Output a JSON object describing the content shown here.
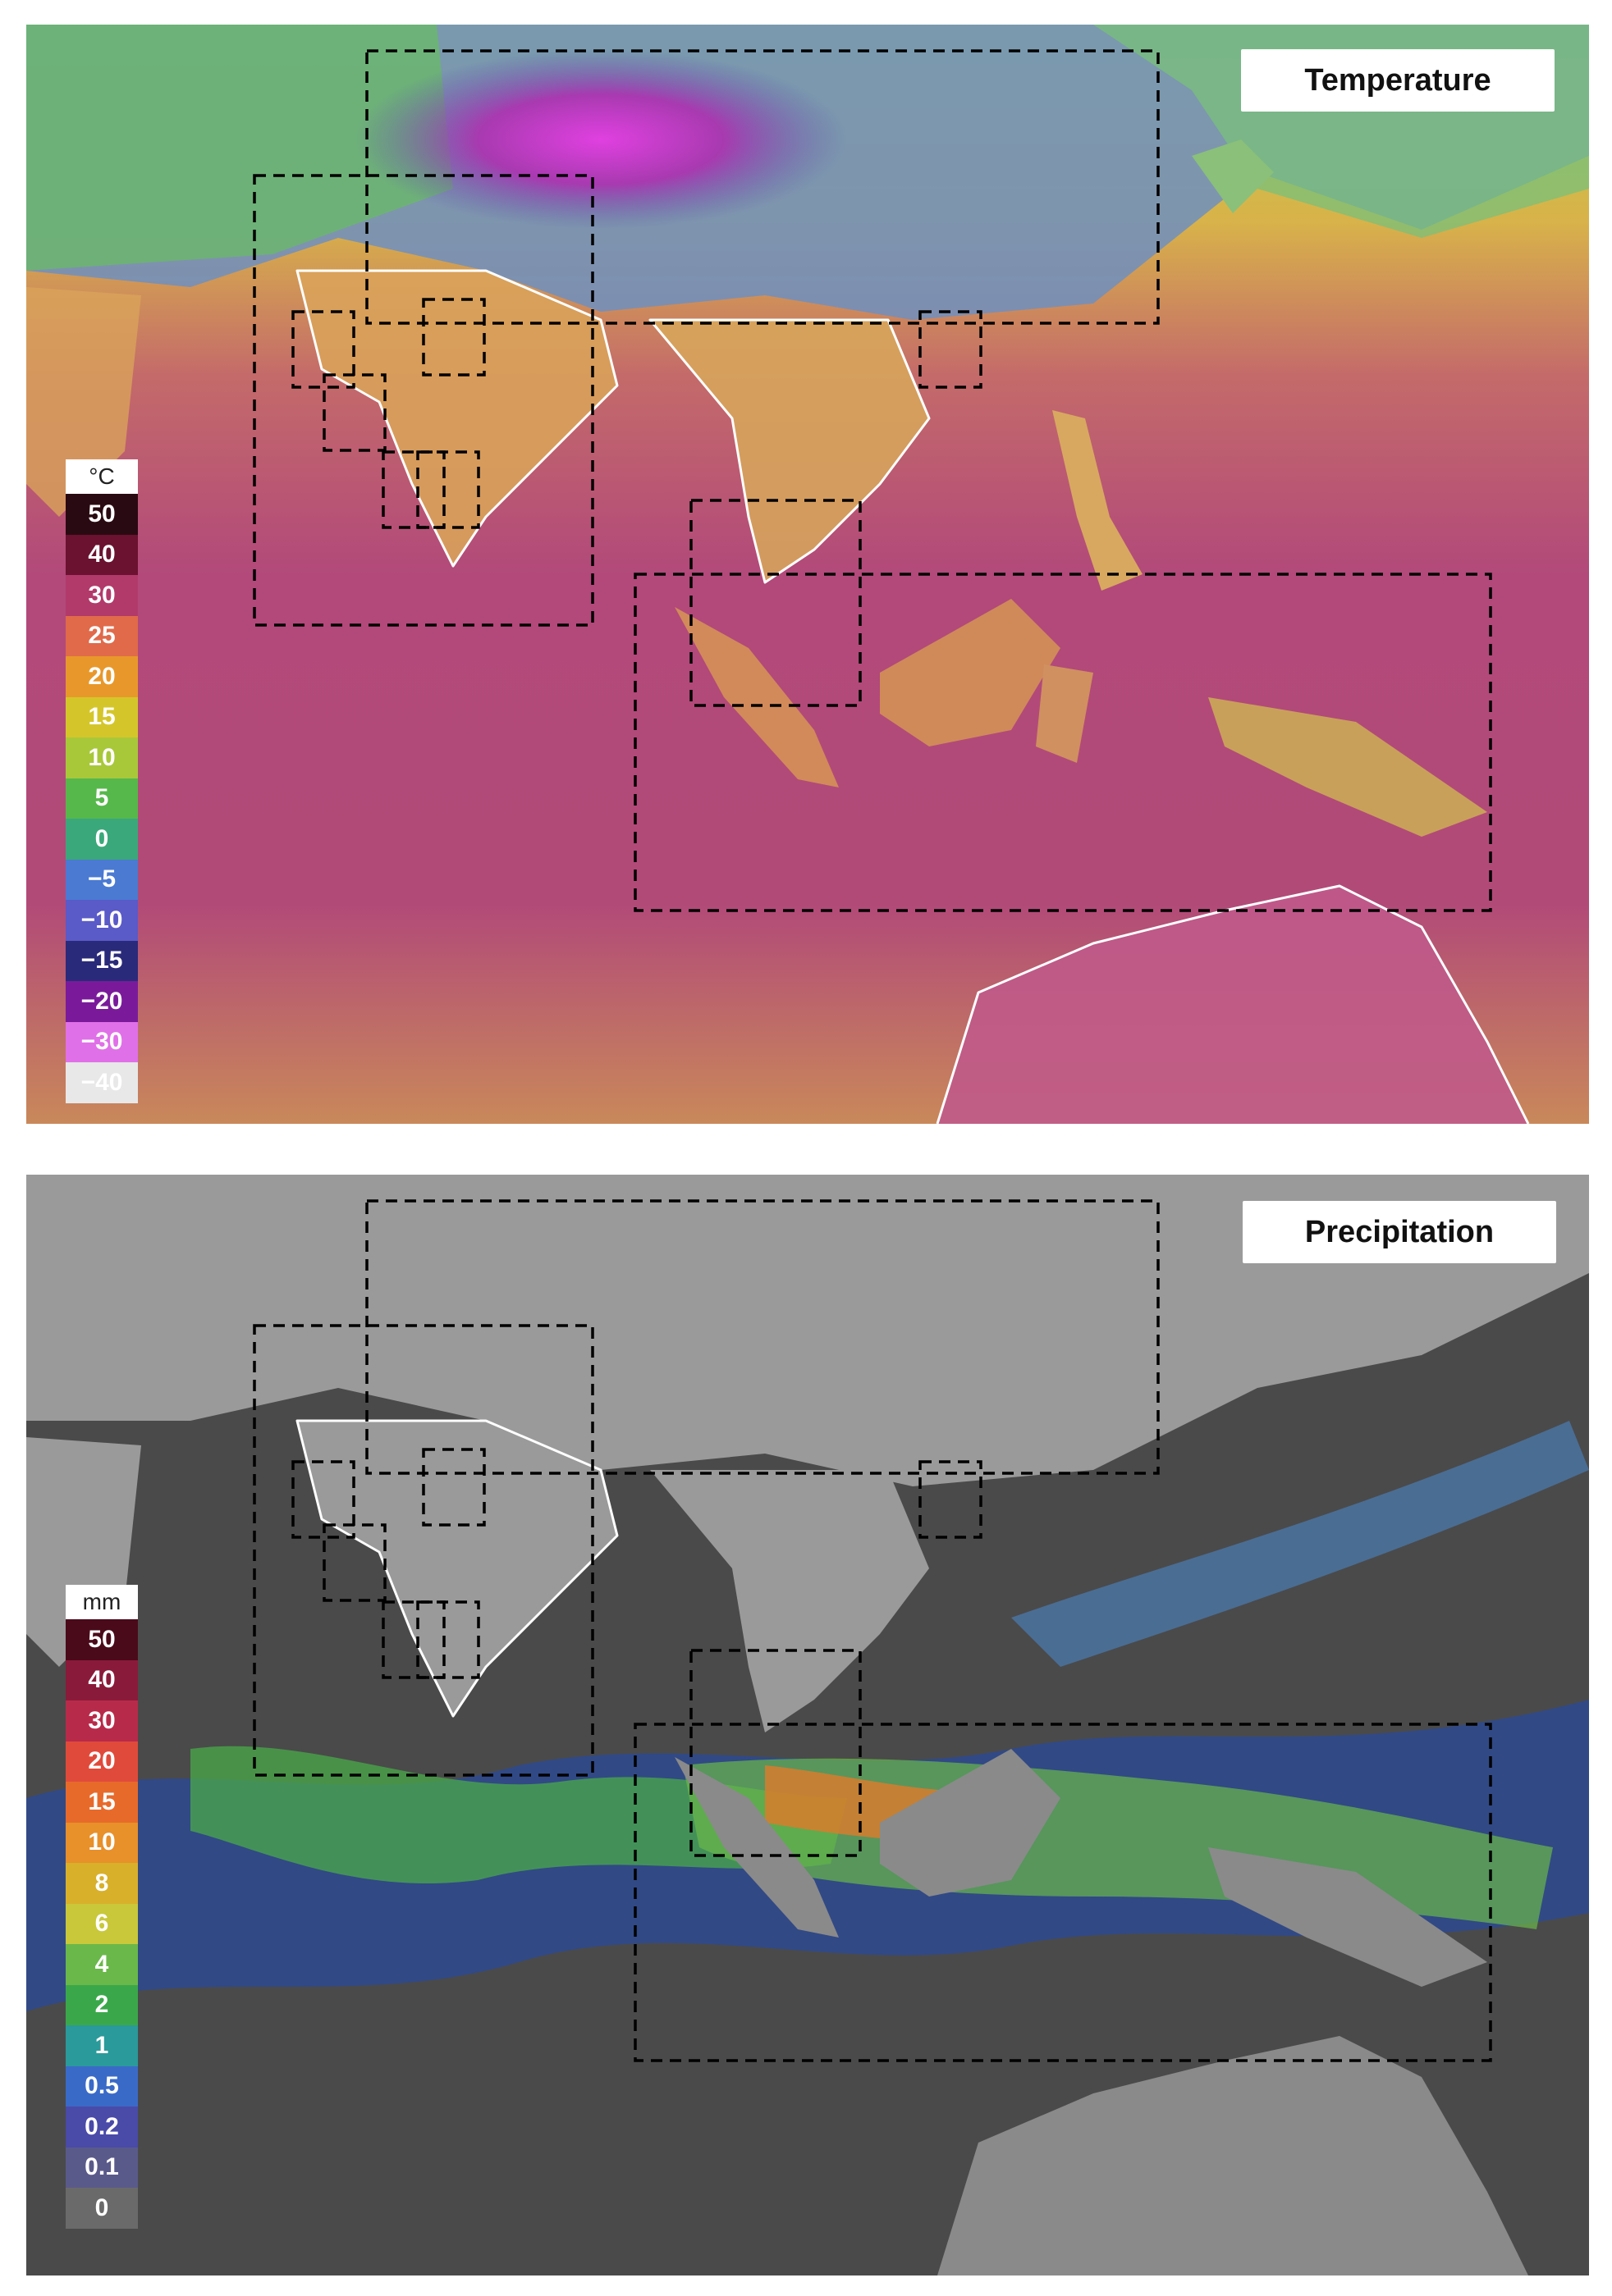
{
  "temperature_panel": {
    "title": "Temperature",
    "legend": {
      "unit": "°C",
      "entries": [
        {
          "label": "50",
          "color": "#2a0a12"
        },
        {
          "label": "40",
          "color": "#6a1230"
        },
        {
          "label": "30",
          "color": "#b23a6a"
        },
        {
          "label": "25",
          "color": "#e06a4a"
        },
        {
          "label": "20",
          "color": "#e8982a"
        },
        {
          "label": "15",
          "color": "#d4c62a"
        },
        {
          "label": "10",
          "color": "#a8c83a"
        },
        {
          "label": "5",
          "color": "#56b84a"
        },
        {
          "label": "0",
          "color": "#3aa87a"
        },
        {
          "label": "−5",
          "color": "#4a7ad2"
        },
        {
          "label": "−10",
          "color": "#5a5ac8"
        },
        {
          "label": "−15",
          "color": "#2a2a7a"
        },
        {
          "label": "−20",
          "color": "#7a1a9a"
        },
        {
          "label": "−30",
          "color": "#e070e8"
        },
        {
          "label": "−40",
          "color": "#e8e8e8"
        }
      ]
    }
  },
  "precipitation_panel": {
    "title": "Precipitation",
    "legend": {
      "unit": "mm",
      "entries": [
        {
          "label": "50",
          "color": "#4a0a1a"
        },
        {
          "label": "40",
          "color": "#8a1a3a"
        },
        {
          "label": "30",
          "color": "#b82a4a"
        },
        {
          "label": "20",
          "color": "#e04a3a"
        },
        {
          "label": "15",
          "color": "#e86a2a"
        },
        {
          "label": "10",
          "color": "#e8902a"
        },
        {
          "label": "8",
          "color": "#d8b02a"
        },
        {
          "label": "6",
          "color": "#c8c83a"
        },
        {
          "label": "4",
          "color": "#6ab84a"
        },
        {
          "label": "2",
          "color": "#3aa84a"
        },
        {
          "label": "1",
          "color": "#2a9a9a"
        },
        {
          "label": "0.5",
          "color": "#3a6ac8"
        },
        {
          "label": "0.2",
          "color": "#4a4aa8"
        },
        {
          "label": "0.1",
          "color": "#5a5a8a"
        },
        {
          "label": "0",
          "color": "#6a6a6a"
        }
      ]
    }
  }
}
